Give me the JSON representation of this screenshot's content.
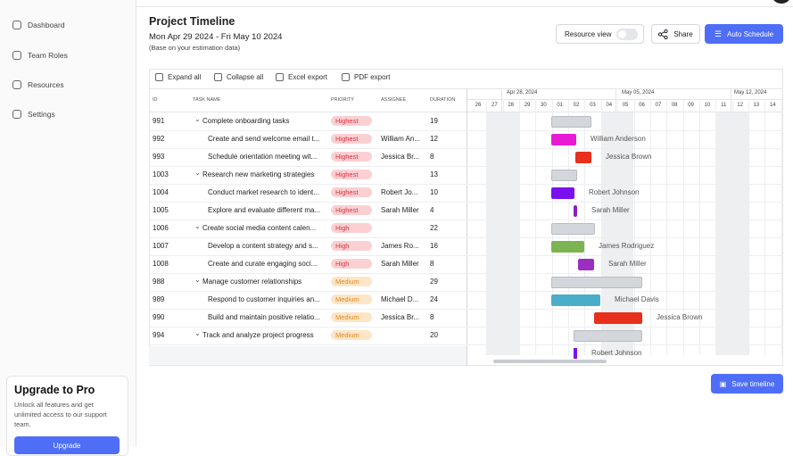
{
  "sidebar": {
    "nav": [
      "Dashboard",
      "Team Roles",
      "Resources",
      "Settings"
    ],
    "upgrade": {
      "title": "Upgrade to Pro",
      "text": "Unlock all features and get unlimited access to our support team.",
      "button": "Upgrade"
    }
  },
  "header": {
    "title": "Project Timeline",
    "date_range": "Mon Apr 29 2024 - Fri May 10 2024",
    "note": "(Base on your estimation data)",
    "resource_view": "Resource view",
    "share": "Share",
    "auto_schedule": "Auto Schedule"
  },
  "toolbar": [
    "Expand all",
    "Collapse all",
    "Excel export",
    "PDF export"
  ],
  "table": {
    "columns": [
      "ID",
      "TASK NAME",
      "PRIORITY",
      "ASSIGNEE",
      "DURATION"
    ],
    "rows": [
      {
        "id": 991,
        "task": "Complete onboarding tasks",
        "priority": "Highest",
        "duration": 19
      },
      {
        "id": 992,
        "task": "Create and send welcome email t...",
        "priority": "Highest",
        "assignee": "William An...",
        "duration": 12,
        "resource": "William Anderson"
      },
      {
        "id": 993,
        "task": "Schedule orientation meeting wit...",
        "priority": "Highest",
        "assignee": "Jessica Br...",
        "duration": 8,
        "resource": "Jessica Brown"
      },
      {
        "id": 1003,
        "task": "Research new marketing strategies",
        "priority": "Highest",
        "duration": 13
      },
      {
        "id": 1004,
        "task": "Conduct market research to ident...",
        "priority": "Highest",
        "assignee": "Robert Jo...",
        "duration": 10,
        "resource": "Robert Johnson"
      },
      {
        "id": 1005,
        "task": "Explore and evaluate different ma...",
        "priority": "Highest",
        "assignee": "Sarah Miller",
        "duration": 4,
        "resource": "Sarah Miller"
      },
      {
        "id": 1006,
        "task": "Create social media content calen...",
        "priority": "High",
        "duration": 22
      },
      {
        "id": 1007,
        "task": "Develop a content strategy and s...",
        "priority": "High",
        "assignee": "James Ro...",
        "duration": 16,
        "resource": "James Rodriguez"
      },
      {
        "id": 1008,
        "task": "Create and curate engaging soci...",
        "priority": "High",
        "assignee": "Sarah Miller",
        "duration": 8,
        "resource": "Sarah Miller"
      },
      {
        "id": 988,
        "task": "Manage customer relationships",
        "priority": "Medium",
        "duration": 29
      },
      {
        "id": 989,
        "task": "Respond to customer inquiries an...",
        "priority": "Medium",
        "assignee": "Michael D...",
        "duration": 24,
        "resource": "Michael Davis"
      },
      {
        "id": 990,
        "task": "Build and maintain positive relatio...",
        "priority": "Medium",
        "assignee": "Jessica Br...",
        "duration": 8,
        "resource": "Jessica Brown"
      },
      {
        "id": 994,
        "task": "Track and analyze project progress",
        "priority": "Medium",
        "duration": 20
      }
    ]
  },
  "timeline": {
    "weeks": [
      "Apr 28, 2024",
      "May 05, 2024",
      "May 12, 2024"
    ],
    "days": [
      "26",
      "27",
      "28",
      "29",
      "30",
      "01",
      "02",
      "03",
      "04",
      "05",
      "06",
      "07",
      "08",
      "09",
      "10",
      "11",
      "12",
      "13",
      "14"
    ],
    "extra_label": "Robert Johnson"
  },
  "footer": {
    "save": "Save timeline"
  }
}
